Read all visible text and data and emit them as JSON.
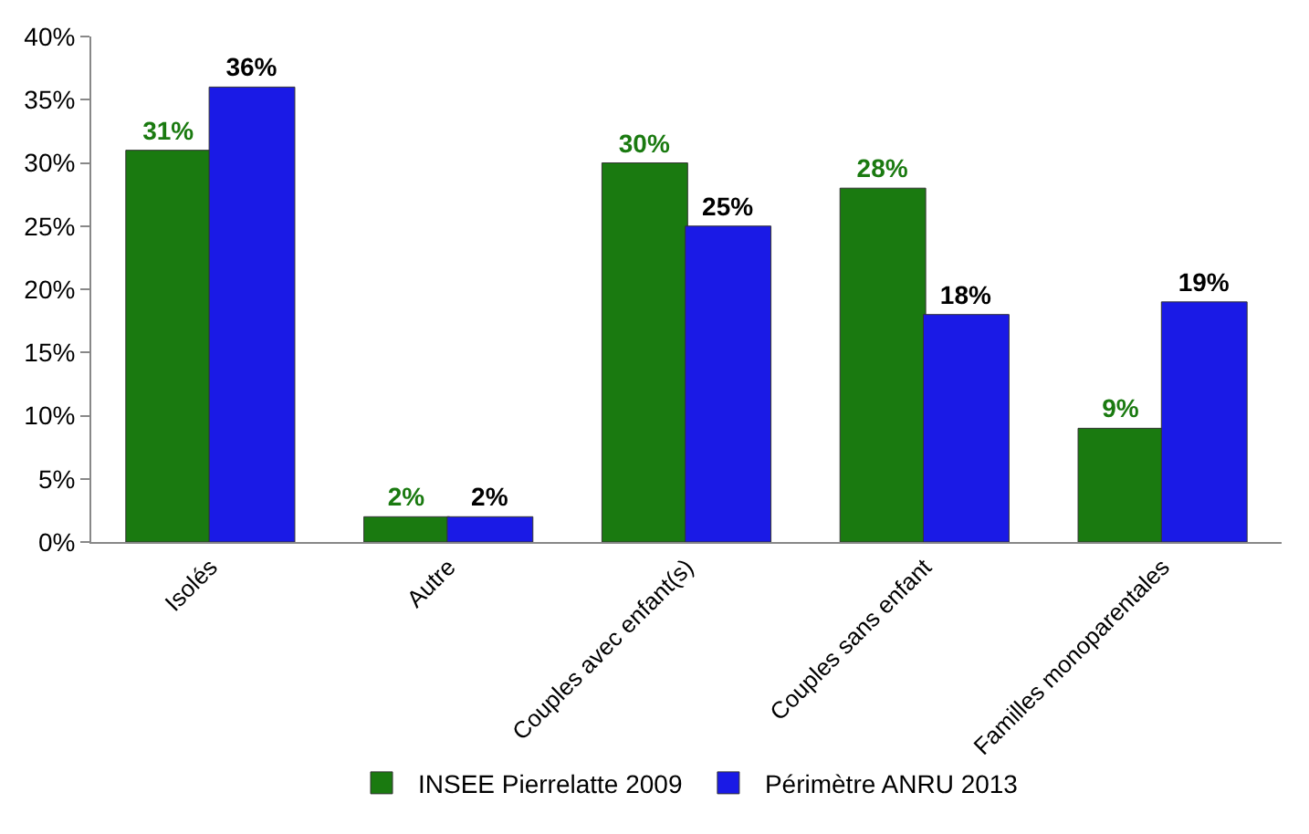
{
  "chart_data": {
    "type": "bar",
    "categories": [
      "Isolés",
      "Autre",
      "Couples avec enfant(s)",
      "Couples sans enfant",
      "Familles monoparentales"
    ],
    "series": [
      {
        "name": "INSEE Pierrelatte 2009",
        "color": "#1a7a10",
        "values": [
          31,
          2,
          30,
          28,
          9
        ],
        "value_labels": [
          "31%",
          "2%",
          "30%",
          "28%",
          "9%"
        ]
      },
      {
        "name": "Périmètre ANRU 2013",
        "color": "#1a1ae6",
        "values": [
          36,
          2,
          25,
          18,
          19
        ],
        "value_labels": [
          "36%",
          "2%",
          "25%",
          "18%",
          "19%"
        ]
      }
    ],
    "ylim": [
      0,
      40
    ],
    "yticks": [
      {
        "value": 0,
        "label": "0%"
      },
      {
        "value": 5,
        "label": "5%"
      },
      {
        "value": 10,
        "label": "10%"
      },
      {
        "value": 15,
        "label": "15%"
      },
      {
        "value": 20,
        "label": "20%"
      },
      {
        "value": 25,
        "label": "25%"
      },
      {
        "value": 30,
        "label": "30%"
      },
      {
        "value": 35,
        "label": "35%"
      },
      {
        "value": 40,
        "label": "40%"
      }
    ],
    "legend": "bottom"
  }
}
